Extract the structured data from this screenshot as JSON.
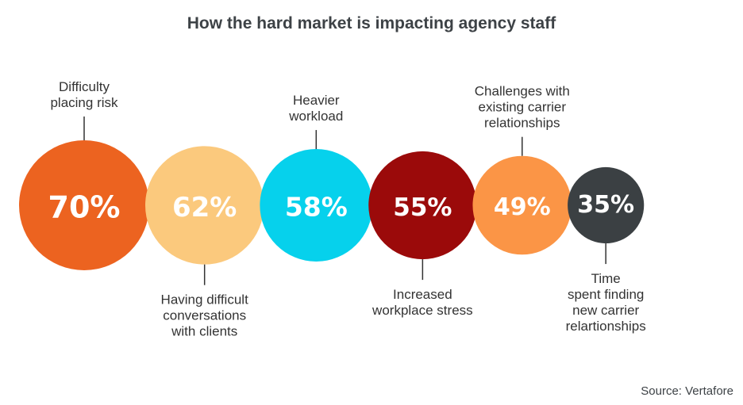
{
  "chart_data": {
    "type": "bubble",
    "title": "How the hard market is impacting agency staff",
    "source": "Source: Vertafore",
    "value_suffix": "%",
    "items": [
      {
        "label": [
          "Difficulty",
          "placing risk"
        ],
        "value": 70,
        "display": "70%",
        "color": "#ec6320",
        "label_position": "top"
      },
      {
        "label": [
          "Having difficult",
          "conversations",
          "with clients"
        ],
        "value": 62,
        "display": "62%",
        "color": "#fbc97d",
        "label_position": "bottom"
      },
      {
        "label": [
          "Heavier",
          "workload"
        ],
        "value": 58,
        "display": "58%",
        "color": "#06d1ec",
        "label_position": "top"
      },
      {
        "label": [
          "Increased",
          "workplace stress"
        ],
        "value": 55,
        "display": "55%",
        "color": "#9b0a0a",
        "label_position": "bottom"
      },
      {
        "label": [
          "Challenges with",
          "existing carrier",
          "relationships"
        ],
        "value": 49,
        "display": "49%",
        "color": "#fb9546",
        "label_position": "top"
      },
      {
        "label": [
          "Time",
          "spent finding",
          "new carrier",
          "relartionships"
        ],
        "value": 35,
        "display": "35%",
        "color": "#3b4043",
        "label_position": "bottom"
      }
    ]
  }
}
